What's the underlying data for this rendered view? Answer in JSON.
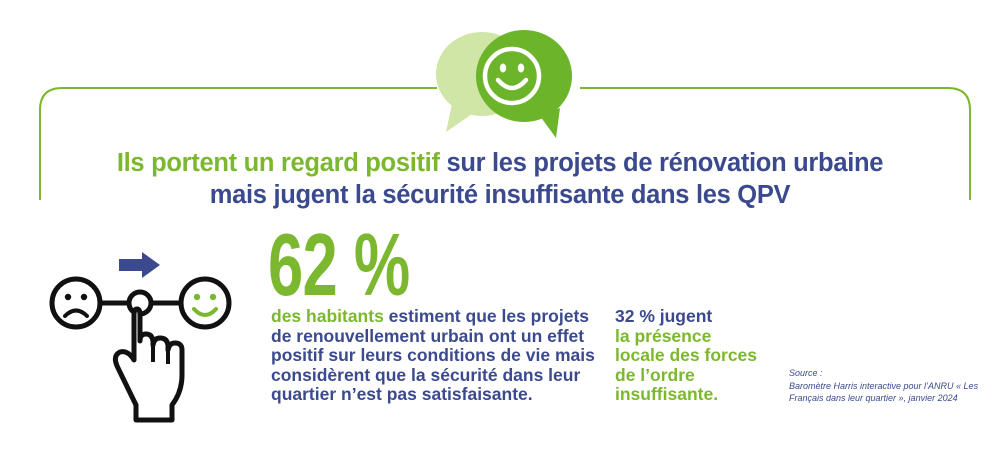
{
  "headline": {
    "line1_highlight": "Ils portent un regard positif",
    "line1_rest": " sur les projets de rénovation urbaine",
    "line2": "mais jugent la sécurité insuffisante dans les QPV"
  },
  "stat": {
    "value": "62 %",
    "text_highlight": "des habitants",
    "text_rest": " estiment que les projets de renouvellement urbain ont un effet positif sur leurs conditions de vie mais considèrent que la sécurité dans leur quartier n’est pas satisfaisante."
  },
  "side_stat": {
    "lead": "32 % jugent",
    "highlight": "la présence locale des forces de l’ordre insuffisante."
  },
  "source": {
    "label": "Source :",
    "text": "Baromètre Harris interactive pour l’ANRU « Les Français dans leur quartier », janvier 2024"
  },
  "colors": {
    "green": "#7cb82f",
    "light_green": "#cfe6a6",
    "blue": "#3b4a8e"
  },
  "icons": [
    "speech-bubbles-smiley-icon",
    "hand-pointer-slider-icon",
    "sad-face-icon",
    "happy-face-icon",
    "arrow-right-icon"
  ]
}
